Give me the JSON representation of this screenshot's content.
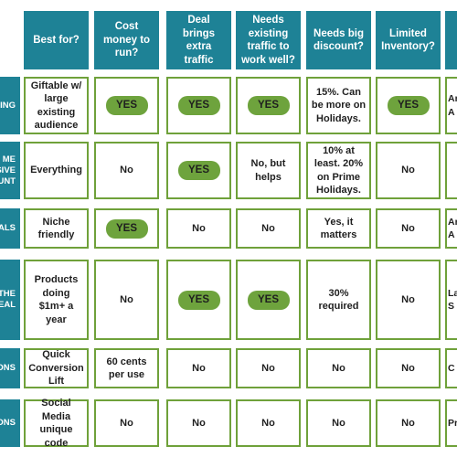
{
  "headers": [
    "Best for?",
    "Cost money to run?",
    "Deal brings extra traffic",
    "Needs existing traffic to work well?",
    "Needs big discount?",
    "Limited Inventory?"
  ],
  "rows": [
    {
      "label_fragment": "ING",
      "best_for": "Giftable w/ large existing audience",
      "cost": "YES",
      "traffic": "YES",
      "existing": "YES",
      "discount": "15%. Can be more on Holidays.",
      "limited": "YES",
      "partial": [
        "Ar",
        "A"
      ]
    },
    {
      "label_fragment": "ME SIVE UNT",
      "best_for": "Everything",
      "cost": "No",
      "traffic": "YES",
      "existing": "No, but helps",
      "discount": "10% at least. 20% on Prime Holidays.",
      "limited": "No",
      "partial": []
    },
    {
      "label_fragment": "ALS",
      "best_for": "Niche friendly",
      "cost": "YES",
      "traffic": "No",
      "existing": "No",
      "discount": "Yes, it matters",
      "limited": "No",
      "partial": [
        "Ar",
        "A"
      ]
    },
    {
      "label_fragment": "THE EAL",
      "best_for": "Products doing $1m+ a year",
      "cost": "No",
      "traffic": "YES",
      "existing": "YES",
      "discount": "30% required",
      "limited": "No",
      "partial": [
        "La",
        "S"
      ]
    },
    {
      "label_fragment": "ONS",
      "best_for": "Quick Conversion Lift",
      "cost": "60 cents per use",
      "traffic": "No",
      "existing": "No",
      "discount": "No",
      "limited": "No",
      "partial": [
        "C"
      ]
    },
    {
      "label_fragment": "ONS",
      "best_for": "Social Media unique code",
      "cost": "No",
      "traffic": "No",
      "existing": "No",
      "discount": "No",
      "limited": "No",
      "partial": [
        "Pr"
      ]
    }
  ]
}
